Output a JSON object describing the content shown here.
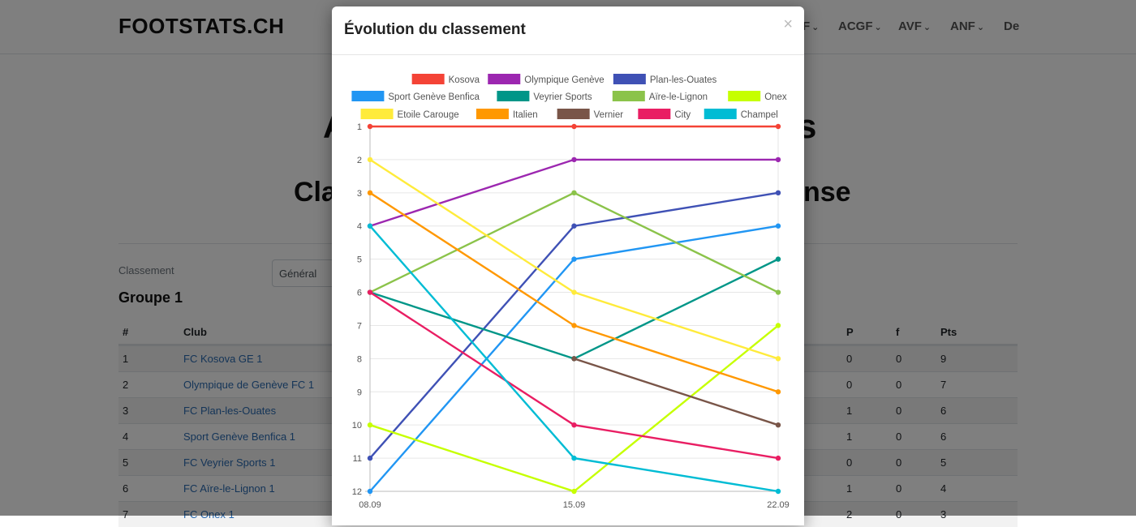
{
  "brand": "FOOTSTATS.CH",
  "nav": [
    {
      "label": "F",
      "left": 989
    },
    {
      "label": "ACGF",
      "left": 1033
    },
    {
      "label": "AVF",
      "left": 1107
    },
    {
      "label": "ANF",
      "left": 1171
    },
    {
      "label": "De",
      "left": 1237
    }
  ],
  "page_title_fragment_left": "A",
  "page_title_fragment_right": "s",
  "page_subtitle_fragment_left": "Cla",
  "page_subtitle_fragment_right": "nse",
  "classement_label": "Classement",
  "classement_select": "Général",
  "group_title": "Groupe 1",
  "table": {
    "headers": {
      "rank": "#",
      "club": "Club",
      "p": "P",
      "f": "f",
      "pts": "Pts"
    },
    "rows": [
      {
        "rank": "1",
        "club": "FC Kosova GE 1",
        "p": "0",
        "f": "0",
        "pts": "9"
      },
      {
        "rank": "2",
        "club": "Olympique de Genève FC 1",
        "p": "0",
        "f": "0",
        "pts": "7"
      },
      {
        "rank": "3",
        "club": "FC Plan-les-Ouates",
        "p": "1",
        "f": "0",
        "pts": "6"
      },
      {
        "rank": "4",
        "club": "Sport Genève Benfica 1",
        "p": "1",
        "f": "0",
        "pts": "6"
      },
      {
        "rank": "5",
        "club": "FC Veyrier Sports 1",
        "p": "0",
        "f": "0",
        "pts": "5"
      },
      {
        "rank": "6",
        "club": "FC Aïre-le-Lignon 1",
        "p": "1",
        "f": "0",
        "pts": "4"
      },
      {
        "rank": "7",
        "club": "FC Onex 1",
        "p": "2",
        "f": "0",
        "pts": "3"
      }
    ]
  },
  "modal": {
    "title": "Évolution du classement",
    "close_label": "×"
  },
  "chart_data": {
    "type": "line",
    "x": [
      "08.09",
      "15.09",
      "22.09"
    ],
    "ylim": [
      1,
      12
    ],
    "y_inverted": true,
    "y_ticks": [
      1,
      2,
      3,
      4,
      5,
      6,
      7,
      8,
      9,
      10,
      11,
      12
    ],
    "grid": true,
    "legend_position": "top",
    "series": [
      {
        "name": "Kosova",
        "color": "#f44336",
        "values": [
          1,
          1,
          1
        ]
      },
      {
        "name": "Olympique Genève",
        "color": "#9c27b0",
        "values": [
          4,
          2,
          2
        ]
      },
      {
        "name": "Plan-les-Ouates",
        "color": "#3f51b5",
        "values": [
          11,
          4,
          3
        ]
      },
      {
        "name": "Sport Genève Benfica",
        "color": "#2196f3",
        "values": [
          12,
          5,
          4
        ]
      },
      {
        "name": "Veyrier Sports",
        "color": "#009688",
        "values": [
          6,
          8,
          5
        ]
      },
      {
        "name": "Aïre-le-Lignon",
        "color": "#8bc34a",
        "values": [
          6,
          3,
          6
        ]
      },
      {
        "name": "Onex",
        "color": "#c6ff00",
        "values": [
          10,
          12,
          7
        ]
      },
      {
        "name": "Etoile Carouge",
        "color": "#ffeb3b",
        "values": [
          2,
          6,
          8
        ]
      },
      {
        "name": "Italien",
        "color": "#ff9800",
        "values": [
          3,
          7,
          9
        ]
      },
      {
        "name": "Vernier",
        "color": "#795548",
        "values": [
          null,
          8,
          10
        ]
      },
      {
        "name": "City",
        "color": "#e91e63",
        "values": [
          6,
          10,
          11
        ]
      },
      {
        "name": "Champel",
        "color": "#00bcd4",
        "values": [
          4,
          11,
          12
        ]
      }
    ]
  }
}
